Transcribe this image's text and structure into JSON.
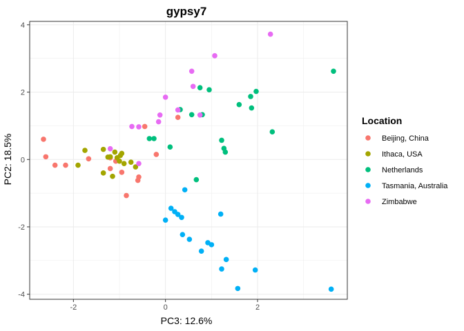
{
  "chart_data": {
    "type": "scatter",
    "title": "gypsy7",
    "xlabel": "PC3: 12.6%",
    "ylabel": "PC2: 18.5%",
    "xlim": [
      -2.95,
      3.95
    ],
    "ylim": [
      -4.15,
      4.1
    ],
    "xticks": [
      -2,
      0,
      2
    ],
    "yticks": [
      -4,
      -2,
      0,
      2,
      4
    ],
    "grid": true,
    "legend": {
      "title": "Location",
      "position": "right"
    },
    "series": [
      {
        "name": "Beijing, China",
        "color": "#F8766D",
        "points": [
          [
            -2.65,
            0.6
          ],
          [
            -2.6,
            0.08
          ],
          [
            -2.4,
            -0.17
          ],
          [
            -2.17,
            -0.17
          ],
          [
            -1.67,
            0.02
          ],
          [
            -1.2,
            0.05
          ],
          [
            -1.2,
            -0.27
          ],
          [
            -1.08,
            -0.05
          ],
          [
            -0.95,
            -0.38
          ],
          [
            -0.85,
            -1.07
          ],
          [
            -0.6,
            -0.62
          ],
          [
            -0.58,
            -0.52
          ],
          [
            -0.45,
            0.98
          ],
          [
            -0.2,
            0.15
          ],
          [
            0.27,
            1.25
          ]
        ]
      },
      {
        "name": "Ithaca, USA",
        "color": "#A3A500",
        "points": [
          [
            -1.9,
            -0.17
          ],
          [
            -1.75,
            0.27
          ],
          [
            -1.35,
            0.3
          ],
          [
            -1.35,
            -0.4
          ],
          [
            -1.25,
            0.07
          ],
          [
            -1.2,
            0.08
          ],
          [
            -1.15,
            -0.5
          ],
          [
            -1.1,
            0.22
          ],
          [
            -1.05,
            0.05
          ],
          [
            -1.0,
            -0.05
          ],
          [
            -0.98,
            0.12
          ],
          [
            -0.95,
            0.18
          ],
          [
            -0.9,
            -0.12
          ],
          [
            -0.75,
            -0.08
          ],
          [
            -0.65,
            -0.22
          ]
        ]
      },
      {
        "name": "Netherlands",
        "color": "#00BF7D",
        "points": [
          [
            -0.35,
            0.62
          ],
          [
            -0.25,
            0.62
          ],
          [
            0.1,
            0.37
          ],
          [
            0.32,
            1.48
          ],
          [
            0.57,
            1.33
          ],
          [
            0.67,
            -0.6
          ],
          [
            0.75,
            2.13
          ],
          [
            0.8,
            1.33
          ],
          [
            0.95,
            2.07
          ],
          [
            1.22,
            0.57
          ],
          [
            1.27,
            0.33
          ],
          [
            1.3,
            0.22
          ],
          [
            1.6,
            1.63
          ],
          [
            1.85,
            1.87
          ],
          [
            1.87,
            1.53
          ],
          [
            1.97,
            2.02
          ],
          [
            2.32,
            0.82
          ],
          [
            3.65,
            2.62
          ]
        ]
      },
      {
        "name": "Tasmania, Australia",
        "color": "#00B0F6",
        "points": [
          [
            0.0,
            -1.8
          ],
          [
            0.12,
            -1.45
          ],
          [
            0.2,
            -1.55
          ],
          [
            0.27,
            -1.63
          ],
          [
            0.35,
            -1.72
          ],
          [
            0.37,
            -2.23
          ],
          [
            0.42,
            -0.9
          ],
          [
            0.52,
            -2.37
          ],
          [
            0.78,
            -2.72
          ],
          [
            0.92,
            -2.47
          ],
          [
            1.0,
            -2.53
          ],
          [
            1.2,
            -1.62
          ],
          [
            1.22,
            -3.25
          ],
          [
            1.32,
            -2.97
          ],
          [
            1.57,
            -3.83
          ],
          [
            1.95,
            -3.28
          ],
          [
            3.6,
            -3.85
          ]
        ]
      },
      {
        "name": "Zimbabwe",
        "color": "#E76BF3",
        "points": [
          [
            -1.2,
            0.32
          ],
          [
            -0.73,
            0.98
          ],
          [
            -0.58,
            0.97
          ],
          [
            -0.58,
            -0.12
          ],
          [
            -0.15,
            1.12
          ],
          [
            -0.12,
            1.32
          ],
          [
            0.0,
            1.85
          ],
          [
            0.27,
            1.47
          ],
          [
            0.57,
            2.62
          ],
          [
            0.6,
            2.17
          ],
          [
            0.75,
            1.32
          ],
          [
            1.07,
            3.08
          ],
          [
            2.28,
            3.72
          ]
        ]
      }
    ]
  }
}
